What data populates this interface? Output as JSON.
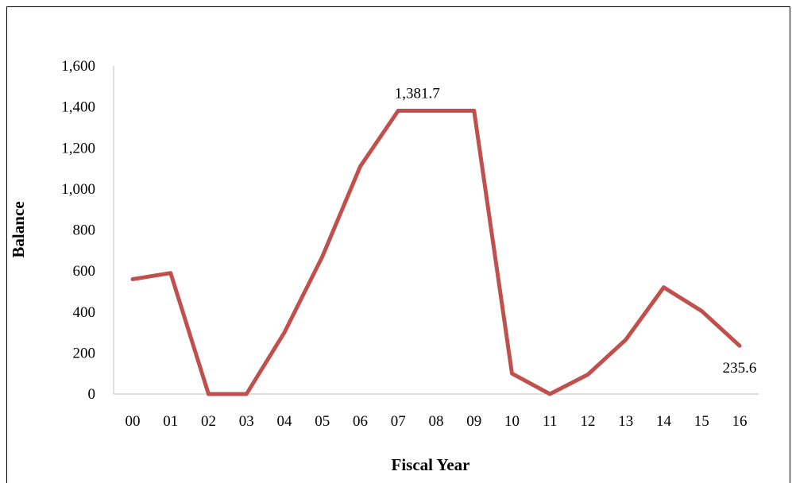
{
  "chart_data": {
    "type": "line",
    "title": "",
    "xlabel": "Fiscal Year",
    "ylabel": "Balance",
    "categories": [
      "00",
      "01",
      "02",
      "03",
      "04",
      "05",
      "06",
      "07",
      "08",
      "09",
      "10",
      "11",
      "12",
      "13",
      "14",
      "15",
      "16"
    ],
    "series": [
      {
        "values": [
          560,
          590,
          0,
          0,
          300,
          670,
          1110,
          1381.7,
          1381.7,
          1381.7,
          100,
          0,
          95,
          265,
          520,
          405,
          235.6
        ],
        "color": "#c0504d"
      }
    ],
    "ylim": [
      0,
      1600
    ],
    "yticks": [
      0,
      200,
      400,
      600,
      800,
      1000,
      1200,
      1400,
      1600
    ],
    "ytick_labels": [
      "0",
      "200",
      "400",
      "600",
      "800",
      "1,000",
      "1,200",
      "1,400",
      "1,600"
    ],
    "grid": false,
    "legend": "none",
    "annotations": [
      {
        "category": "07",
        "text": "1,381.7"
      },
      {
        "category": "16",
        "text": "235.6"
      }
    ]
  }
}
